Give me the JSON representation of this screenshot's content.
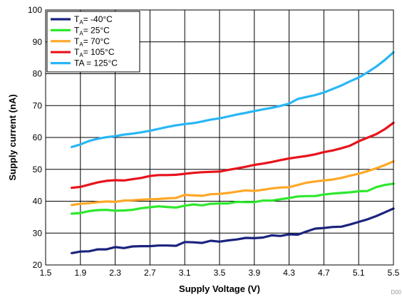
{
  "chart_data": {
    "type": "line",
    "xlabel": "Supply Voltage (V)",
    "ylabel": "Supply current (nA)",
    "xlim": [
      1.5,
      5.5
    ],
    "ylim": [
      20,
      100
    ],
    "x_ticks": [
      "1.5",
      "1.9",
      "2.3",
      "2.7",
      "3.1",
      "3.5",
      "3.9",
      "4.3",
      "4.7",
      "5.1",
      "5.5"
    ],
    "y_ticks": [
      "20",
      "30",
      "40",
      "50",
      "60",
      "70",
      "80",
      "90",
      "100"
    ],
    "grid": true,
    "legend_position": "top-left",
    "corner_tag": "D00",
    "x": [
      1.8,
      1.9,
      2.0,
      2.1,
      2.2,
      2.3,
      2.4,
      2.5,
      2.6,
      2.7,
      2.8,
      2.9,
      3.0,
      3.1,
      3.2,
      3.3,
      3.4,
      3.5,
      3.6,
      3.7,
      3.8,
      3.9,
      4.0,
      4.1,
      4.2,
      4.3,
      4.4,
      4.5,
      4.6,
      4.7,
      4.8,
      4.9,
      5.0,
      5.1,
      5.2,
      5.3,
      5.4,
      5.5
    ],
    "series": [
      {
        "name": "-40°C",
        "label_sub": "A",
        "label_tail": "= -40°C",
        "color": "#1a237e",
        "values": [
          23.7,
          24.2,
          24.3,
          24.9,
          24.9,
          25.6,
          25.3,
          25.8,
          25.9,
          25.9,
          26.1,
          26.1,
          26.0,
          27.2,
          27.1,
          26.9,
          27.6,
          27.3,
          27.7,
          28.0,
          28.5,
          28.4,
          28.6,
          29.3,
          29.1,
          29.6,
          29.5,
          30.5,
          31.4,
          31.6,
          31.9,
          32.0,
          32.7,
          33.5,
          34.3,
          35.3,
          36.5,
          37.7
        ]
      },
      {
        "name": "25°C",
        "label_sub": "A",
        "label_tail": "= 25°C",
        "color": "#2ee82e",
        "values": [
          36.1,
          36.3,
          36.9,
          37.2,
          37.3,
          37.0,
          37.1,
          37.3,
          37.8,
          38.1,
          38.4,
          38.2,
          38.0,
          38.6,
          39.0,
          38.7,
          39.2,
          39.3,
          39.3,
          39.8,
          39.7,
          39.7,
          40.2,
          40.2,
          40.6,
          41.0,
          41.5,
          41.6,
          41.6,
          42.1,
          42.4,
          42.6,
          42.8,
          43.1,
          43.2,
          44.4,
          45.1,
          45.5
        ]
      },
      {
        "name": "70°C",
        "label_sub": "A",
        "label_tail": "= 70°C",
        "color": "#ffa726",
        "values": [
          38.8,
          39.2,
          39.4,
          39.7,
          39.9,
          39.8,
          40.2,
          40.3,
          40.5,
          40.6,
          40.7,
          40.9,
          41.0,
          42.0,
          41.8,
          41.7,
          42.2,
          42.3,
          42.6,
          43.0,
          43.4,
          43.2,
          43.6,
          44.0,
          44.3,
          44.4,
          45.1,
          45.8,
          46.2,
          46.5,
          46.8,
          47.3,
          48.0,
          48.6,
          49.4,
          50.3,
          51.3,
          52.5
        ]
      },
      {
        "name": "105°C",
        "label_sub": "A",
        "label_tail": "= 105°C",
        "color": "#e8121b",
        "values": [
          44.2,
          44.5,
          45.2,
          45.9,
          46.4,
          46.6,
          46.5,
          46.9,
          47.3,
          47.9,
          48.2,
          48.2,
          48.3,
          48.6,
          48.9,
          49.1,
          49.2,
          49.3,
          49.8,
          50.3,
          50.8,
          51.4,
          51.8,
          52.3,
          52.9,
          53.4,
          53.8,
          54.2,
          54.7,
          55.4,
          55.9,
          56.6,
          57.4,
          58.8,
          59.9,
          61.0,
          62.6,
          64.6
        ]
      },
      {
        "name": "125°C",
        "label_sub": "",
        "label_tail": "TA = 125°C",
        "color": "#29b6f6",
        "values": [
          57.0,
          57.8,
          58.9,
          59.6,
          60.1,
          60.4,
          60.9,
          61.2,
          61.6,
          62.1,
          62.7,
          63.3,
          63.8,
          64.2,
          64.5,
          65.0,
          65.6,
          66.0,
          66.6,
          67.2,
          67.7,
          68.3,
          68.8,
          69.3,
          69.9,
          70.6,
          72.1,
          72.7,
          73.3,
          74.1,
          75.2,
          76.3,
          77.6,
          78.8,
          80.4,
          82.2,
          84.3,
          86.7
        ]
      }
    ]
  }
}
